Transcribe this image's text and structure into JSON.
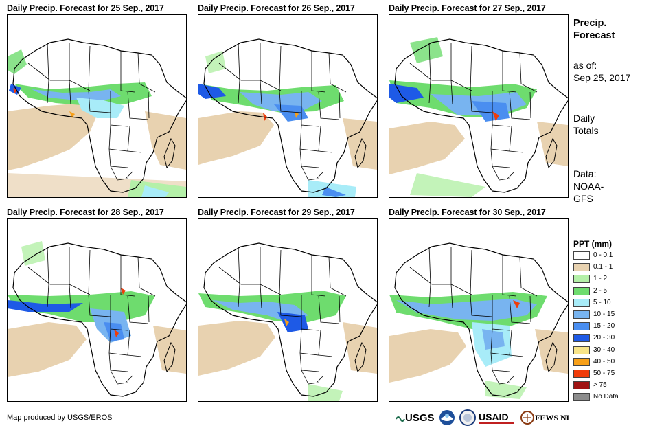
{
  "panels": [
    {
      "title": "Daily Precip. Forecast for 25  Sep., 2017"
    },
    {
      "title": "Daily Precip. Forecast for 26  Sep., 2017"
    },
    {
      "title": "Daily Precip. Forecast for 27  Sep., 2017"
    },
    {
      "title": "Daily Precip. Forecast for 28  Sep., 2017"
    },
    {
      "title": "Daily Precip. Forecast for 29  Sep., 2017"
    },
    {
      "title": "Daily Precip. Forecast for 30  Sep., 2017"
    }
  ],
  "sidebar": {
    "title_line1": "Precip.",
    "title_line2": "Forecast",
    "asof_line1": "as of:",
    "asof_line2": "Sep 25, 2017",
    "daily_line1": "Daily",
    "daily_line2": "Totals",
    "data_line1": "Data:",
    "data_line2": "NOAA-",
    "data_line3": "GFS"
  },
  "legend": {
    "title": "PPT (mm)",
    "items": [
      {
        "label": "0 - 0.1",
        "color": "#ffffff"
      },
      {
        "label": "0.1 - 1",
        "color": "#e8d2b0"
      },
      {
        "label": "1 - 2",
        "color": "#b4f0a8"
      },
      {
        "label": "2 - 5",
        "color": "#6edc6e"
      },
      {
        "label": "5 - 10",
        "color": "#a8ecf8"
      },
      {
        "label": "10 - 15",
        "color": "#78b4f0"
      },
      {
        "label": "15 - 20",
        "color": "#4a8ef0"
      },
      {
        "label": "20 - 30",
        "color": "#1e5ae6"
      },
      {
        "label": "30 - 40",
        "color": "#f8e488"
      },
      {
        "label": "40 - 50",
        "color": "#f8a018"
      },
      {
        "label": "50 - 75",
        "color": "#f03c0a"
      },
      {
        "label": "> 75",
        "color": "#a01414"
      },
      {
        "label": "No Data",
        "color": "#8c8c8c"
      }
    ]
  },
  "credit": "Map produced by USGS/EROS",
  "logos": {
    "usgs": "USGS",
    "usaid": "USAID",
    "fews": "FEWS NET"
  }
}
